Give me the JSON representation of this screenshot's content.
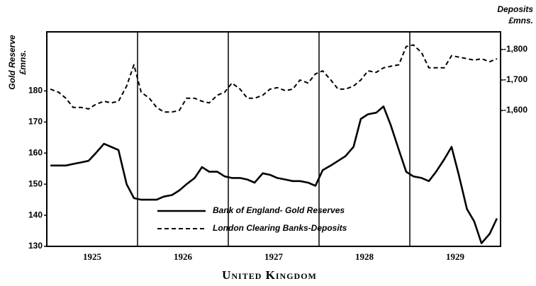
{
  "chart_data": {
    "type": "line",
    "title": "United Kingdom",
    "y_label": [
      "Gold Reserve",
      "£mns."
    ],
    "y2_label": [
      "Deposits",
      "£mns."
    ],
    "x": [
      1925.04,
      1925.13,
      1925.21,
      1925.29,
      1925.38,
      1925.46,
      1925.54,
      1925.63,
      1925.71,
      1925.79,
      1925.88,
      1925.96,
      1926.04,
      1926.13,
      1926.21,
      1926.29,
      1926.38,
      1926.46,
      1926.54,
      1926.63,
      1926.71,
      1926.79,
      1926.88,
      1926.96,
      1927.04,
      1927.13,
      1927.21,
      1927.29,
      1927.38,
      1927.46,
      1927.54,
      1927.63,
      1927.71,
      1927.79,
      1927.88,
      1927.96,
      1928.04,
      1928.13,
      1928.21,
      1928.29,
      1928.38,
      1928.46,
      1928.54,
      1928.63,
      1928.71,
      1928.79,
      1928.88,
      1928.96,
      1929.04,
      1929.13,
      1929.21,
      1929.29,
      1929.38,
      1929.46,
      1929.54,
      1929.63,
      1929.71,
      1929.79,
      1929.88,
      1929.96
    ],
    "xlim": [
      1925,
      1930
    ],
    "xticks": [
      {
        "value": 1925.5,
        "label": "1925"
      },
      {
        "value": 1926.5,
        "label": "1926"
      },
      {
        "value": 1927.5,
        "label": "1927"
      },
      {
        "value": 1928.5,
        "label": "1928"
      },
      {
        "value": 1929.5,
        "label": "1929"
      }
    ],
    "xgrid": [
      1926,
      1927,
      1928,
      1929
    ],
    "ylim": [
      130,
      199
    ],
    "yticks": [
      130,
      140,
      150,
      160,
      170,
      180
    ],
    "y2lim": [
      1154,
      1858
    ],
    "y2ticks": [
      {
        "value": 1600,
        "label": "-1,600"
      },
      {
        "value": 1700,
        "label": "-1,700"
      },
      {
        "value": 1800,
        "label": "-1,800"
      }
    ],
    "series": [
      {
        "name": "Bank of England- Gold Reserves",
        "color": "#000000",
        "dash": "solid",
        "values": [
          156,
          156,
          156,
          156.5,
          157,
          157.5,
          160,
          163,
          162,
          161,
          150,
          145.5,
          145,
          145,
          145,
          146,
          146.5,
          148,
          150,
          152,
          155.5,
          154,
          154,
          152.5,
          152,
          152,
          151.5,
          150.5,
          153.5,
          153,
          152,
          151.5,
          151,
          151,
          150.5,
          149.5,
          154.5,
          156,
          157.5,
          159,
          162,
          171,
          172.5,
          173,
          175,
          169,
          161,
          154,
          152.5,
          152,
          151,
          154,
          158,
          162,
          153,
          142,
          138,
          131,
          134,
          139
        ]
      },
      {
        "name": "London Clearing Banks-Deposits",
        "color": "#000000",
        "dash": "dashed",
        "axis": "y2",
        "values": [
          1670,
          1660,
          1640,
          1610,
          1610,
          1605,
          1620,
          1630,
          1625,
          1630,
          1680,
          1750,
          1660,
          1640,
          1610,
          1595,
          1595,
          1600,
          1640,
          1640,
          1630,
          1625,
          1650,
          1660,
          1690,
          1670,
          1640,
          1640,
          1650,
          1670,
          1675,
          1665,
          1670,
          1700,
          1690,
          1720,
          1730,
          1700,
          1670,
          1670,
          1680,
          1700,
          1730,
          1725,
          1740,
          1745,
          1750,
          1810,
          1815,
          1790,
          1740,
          1740,
          1740,
          1780,
          1775,
          1770,
          1765,
          1770,
          1760,
          1770
        ]
      }
    ]
  }
}
